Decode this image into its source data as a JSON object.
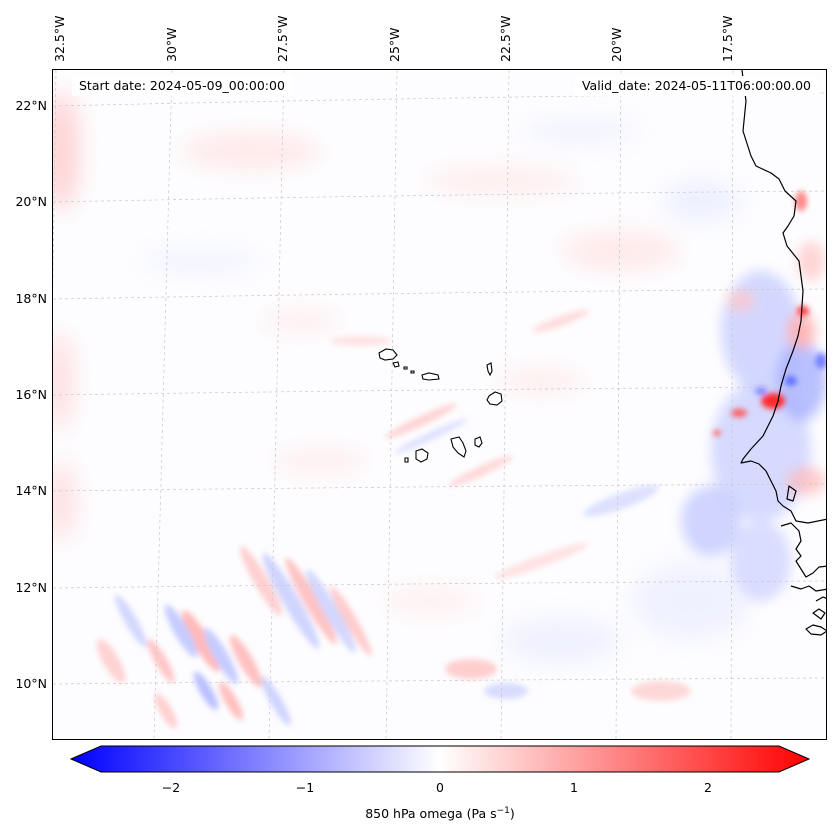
{
  "map": {
    "start_date": "Start date: 2024-05-09_00:00:00",
    "valid_date": "Valid_date: 2024-05-11T06:00:00.00",
    "lon_labels": [
      "32.5°W",
      "30°W",
      "27.5°W",
      "25°W",
      "22.5°W",
      "20°W",
      "17.5°W"
    ],
    "lat_labels": [
      "22°N",
      "20°N",
      "18°N",
      "16°N",
      "14°N",
      "12°N",
      "10°N"
    ],
    "coastline_color": "#000000",
    "gridline_color": "#c8c8c8"
  },
  "colorbar": {
    "ticks": [
      "−2",
      "−1",
      "0",
      "1",
      "2"
    ],
    "title": "850 hPa omega (Pa s",
    "title_sup": "−1",
    "title_end": ")",
    "min_color": "#0000ff",
    "mid_color": "#ffffff",
    "max_color": "#ff0000",
    "range": [
      -2.6,
      2.6
    ]
  }
}
